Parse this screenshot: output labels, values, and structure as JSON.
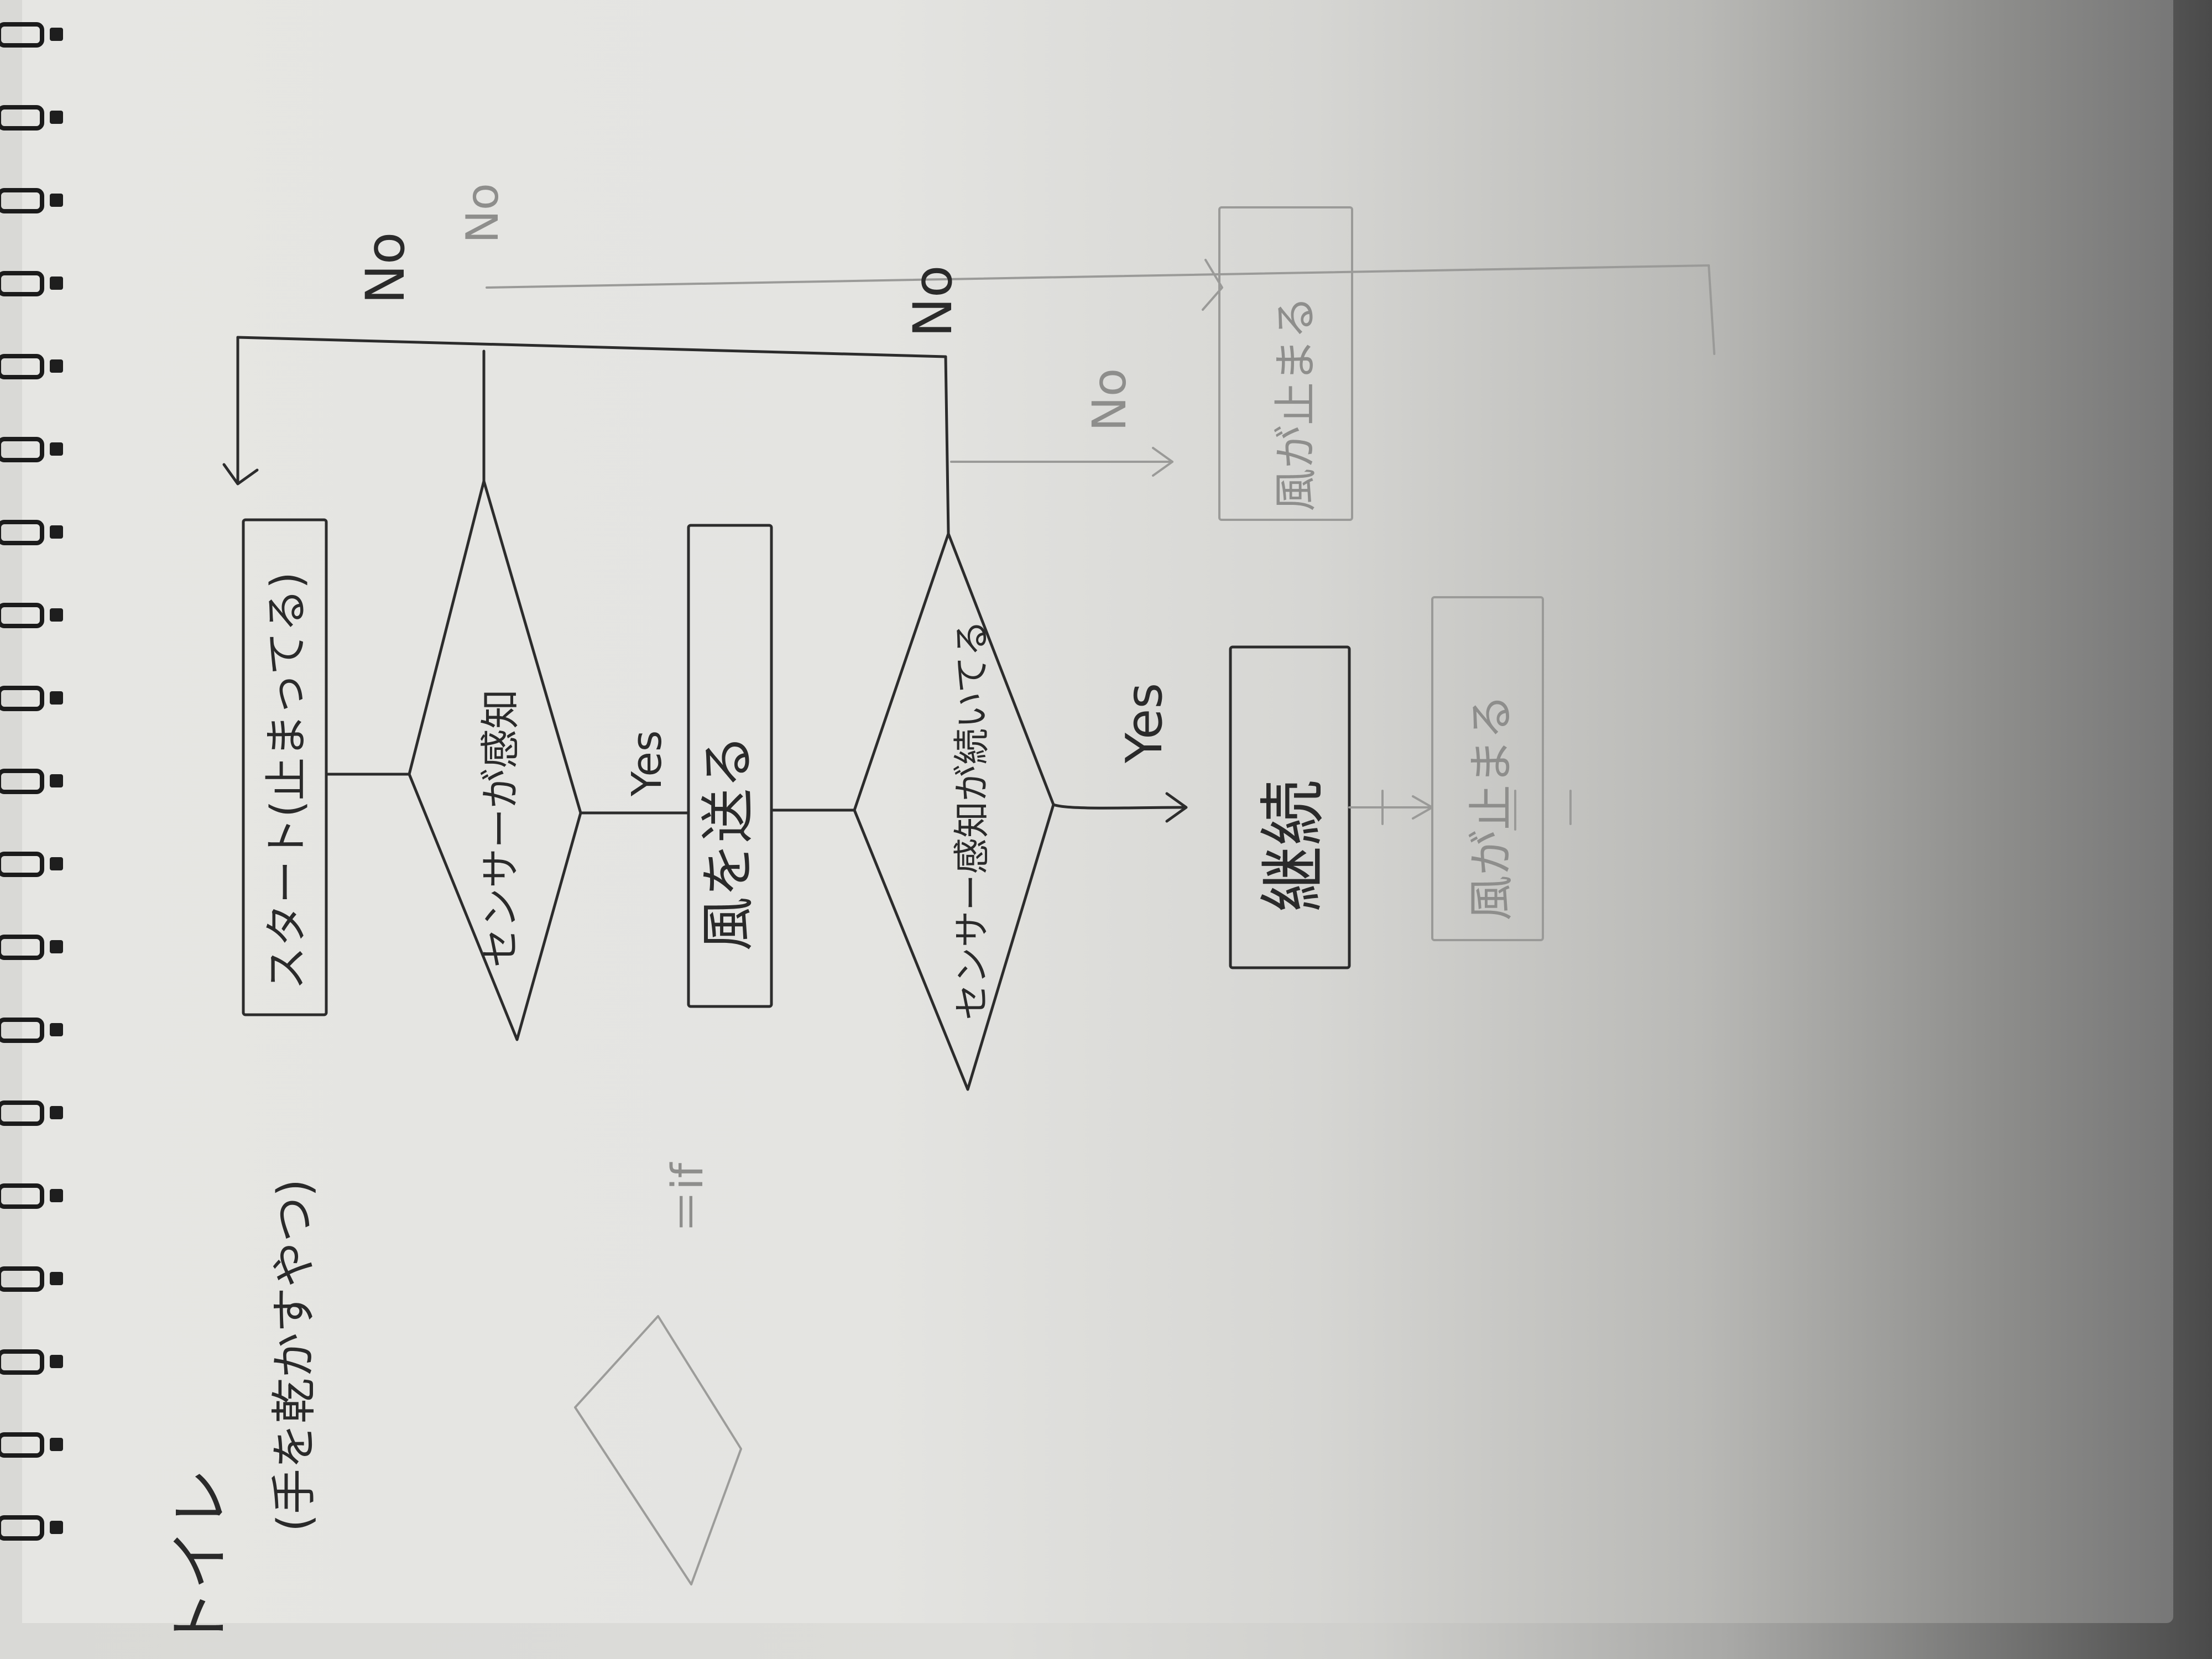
{
  "title": "トイレ",
  "subtitle": "(手を乾かすやつ)",
  "legend": {
    "symbol_meaning": "＝if"
  },
  "nodes": {
    "start": "スタート(止まってる)",
    "decision1": "センサーが感知",
    "action1": "風を送る",
    "decision2": "センサー感知が続いてる",
    "action_continue": "継続",
    "action_stop": "風が止まる",
    "action_stop_faint": "風が止まる"
  },
  "edge_labels": {
    "d1_yes": "Yes",
    "d1_no": "No",
    "d2_yes": "Yes",
    "d2_no": "No",
    "faint_no_1": "No",
    "faint_no_2": "No"
  },
  "colors": {
    "ink": "#2a2a2a",
    "faint_ink": "#8e8e8c",
    "paper": "#e4e4e1",
    "binding": "#1b1b1b"
  }
}
